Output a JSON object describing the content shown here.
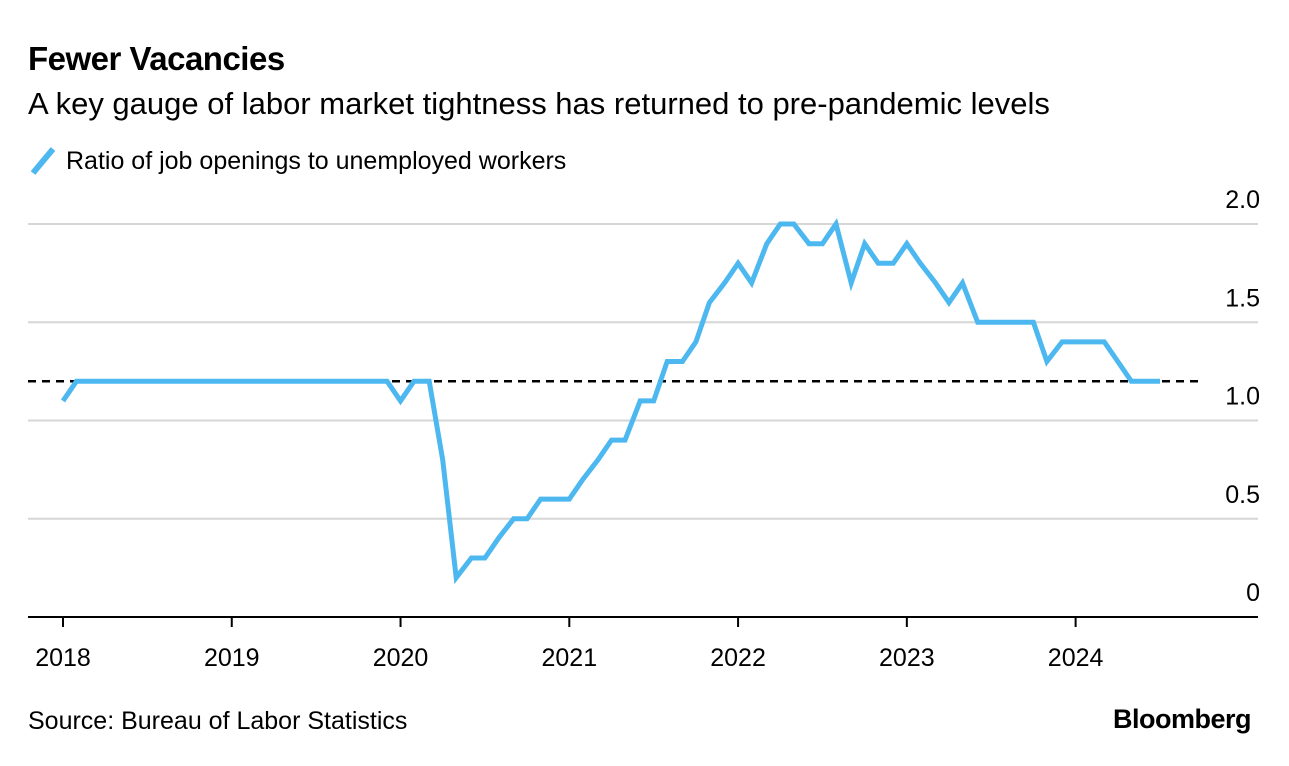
{
  "title": "Fewer Vacancies",
  "subtitle": "A key gauge of labor market tightness has returned to pre-pandemic levels",
  "legend": {
    "label": "Ratio of job openings to unemployed workers",
    "color": "#4db8f0"
  },
  "source": "Source: Bureau of Labor Statistics",
  "brand": "Bloomberg",
  "chart_data": {
    "type": "line",
    "title": "Fewer Vacancies",
    "ylim": [
      0,
      2.0
    ],
    "ytick_labels": [
      "0",
      "0.5",
      "1.0",
      "1.5",
      "2.0"
    ],
    "ytick_values": [
      0,
      0.5,
      1.0,
      1.5,
      2.0
    ],
    "xtick_labels": [
      "2018",
      "2019",
      "2020",
      "2021",
      "2022",
      "2023",
      "2024"
    ],
    "xtick_values": [
      2018.0,
      2019.0,
      2020.0,
      2021.0,
      2022.0,
      2023.0,
      2024.0
    ],
    "xlim": [
      2017.8,
      2024.95
    ],
    "reference_line": {
      "y": 1.2,
      "style": "dashed",
      "color": "#000000"
    },
    "series": [
      {
        "name": "Ratio of job openings to unemployed workers",
        "color": "#4db8f0",
        "x": [
          2018.0,
          2018.08,
          2018.17,
          2018.25,
          2018.33,
          2018.42,
          2018.5,
          2018.58,
          2018.67,
          2018.75,
          2018.83,
          2018.92,
          2019.0,
          2019.08,
          2019.17,
          2019.25,
          2019.33,
          2019.42,
          2019.5,
          2019.58,
          2019.67,
          2019.75,
          2019.83,
          2019.92,
          2020.0,
          2020.08,
          2020.17,
          2020.25,
          2020.33,
          2020.42,
          2020.5,
          2020.58,
          2020.67,
          2020.75,
          2020.83,
          2020.92,
          2021.0,
          2021.08,
          2021.17,
          2021.25,
          2021.33,
          2021.42,
          2021.5,
          2021.58,
          2021.67,
          2021.75,
          2021.83,
          2021.92,
          2022.0,
          2022.08,
          2022.17,
          2022.25,
          2022.33,
          2022.42,
          2022.5,
          2022.58,
          2022.67,
          2022.75,
          2022.83,
          2022.92,
          2023.0,
          2023.08,
          2023.17,
          2023.25,
          2023.33,
          2023.42,
          2023.5,
          2023.58,
          2023.67,
          2023.75,
          2023.83,
          2023.92,
          2024.0,
          2024.08,
          2024.17,
          2024.25,
          2024.33,
          2024.42,
          2024.5
        ],
        "values": [
          1.1,
          1.2,
          1.2,
          1.2,
          1.2,
          1.2,
          1.2,
          1.2,
          1.2,
          1.2,
          1.2,
          1.2,
          1.2,
          1.2,
          1.2,
          1.2,
          1.2,
          1.2,
          1.2,
          1.2,
          1.2,
          1.2,
          1.2,
          1.2,
          1.1,
          1.2,
          1.2,
          0.8,
          0.2,
          0.3,
          0.3,
          0.4,
          0.5,
          0.5,
          0.6,
          0.6,
          0.6,
          0.7,
          0.8,
          0.9,
          0.9,
          1.1,
          1.1,
          1.3,
          1.3,
          1.4,
          1.6,
          1.7,
          1.8,
          1.7,
          1.9,
          2.0,
          2.0,
          1.9,
          1.9,
          2.0,
          1.7,
          1.9,
          1.8,
          1.8,
          1.9,
          1.8,
          1.7,
          1.6,
          1.7,
          1.5,
          1.5,
          1.5,
          1.5,
          1.5,
          1.3,
          1.4,
          1.4,
          1.4,
          1.4,
          1.3,
          1.2,
          1.2,
          1.2
        ]
      }
    ]
  }
}
